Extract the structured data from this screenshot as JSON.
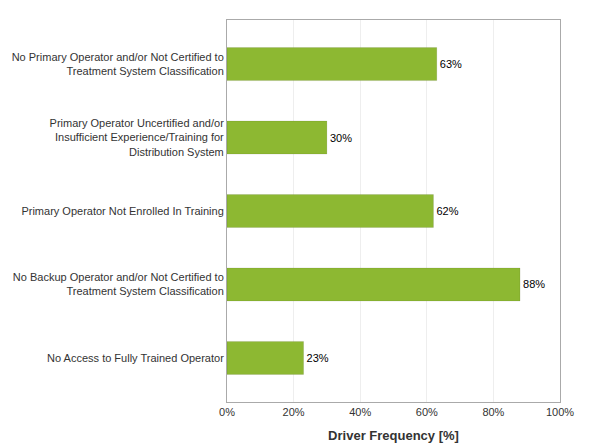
{
  "chart_data": {
    "type": "bar",
    "orientation": "horizontal",
    "categories": [
      "No Access to Fully Trained Operator",
      "No Backup Operator and/or Not Certified to\nTreatment System Classification",
      "Primary Operator Not Enrolled In Training",
      "Primary Operator Uncertified and/or\nInsufficient Experience/Training for\nDistribution System",
      "No Primary Operator and/or Not Certified to\nTreatment System Classification"
    ],
    "values": [
      23,
      88,
      62,
      30,
      63
    ],
    "value_labels": [
      "23%",
      "88%",
      "62%",
      "30%",
      "63%"
    ],
    "data_labels": true,
    "color": "#8db832",
    "xlabel": "Driver Frequency [%]",
    "xlim": [
      0,
      100
    ],
    "xticks": [
      {
        "value": 0,
        "label": "0%"
      },
      {
        "value": 20,
        "label": "20%"
      },
      {
        "value": 40,
        "label": "40%"
      },
      {
        "value": 60,
        "label": "60%"
      },
      {
        "value": 80,
        "label": "80%"
      },
      {
        "value": 100,
        "label": "100%"
      }
    ],
    "grid": true
  }
}
